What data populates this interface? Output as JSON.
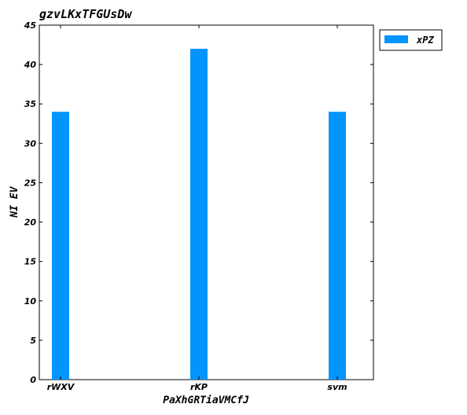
{
  "chart_data": {
    "type": "bar",
    "title": "gzvLKxTFGUsDw",
    "xlabel": "PaXhGRTiaVMCfJ",
    "ylabel": "NI EV",
    "categories": [
      "rWXV",
      "rKP",
      "svm"
    ],
    "series": [
      {
        "name": "xPZ",
        "values": [
          34,
          42,
          34
        ],
        "color": "#0394fc"
      }
    ],
    "ylim": [
      0,
      45
    ],
    "yticks": [
      0,
      5,
      10,
      15,
      20,
      25,
      30,
      35,
      40,
      45
    ],
    "grid": false,
    "legend": "top-right, outside plot"
  }
}
